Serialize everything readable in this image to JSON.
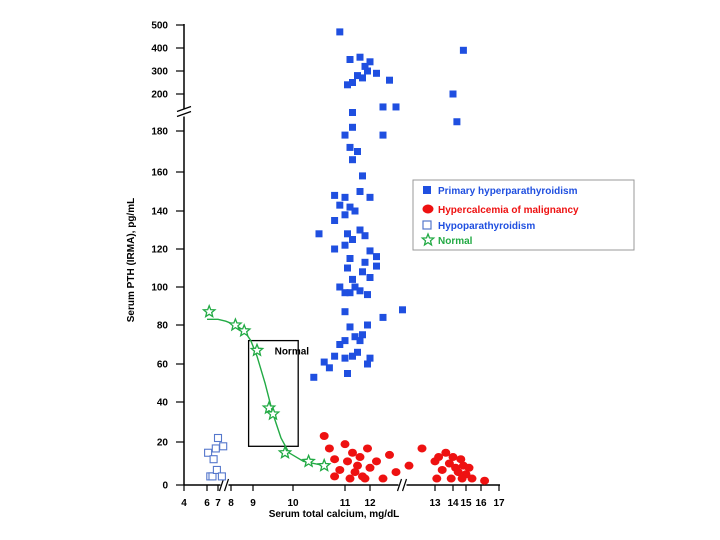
{
  "chart_data": {
    "type": "scatter",
    "title": "",
    "xlabel": "Serum total calcium, mg/dL",
    "ylabel": "Serum PTH (IRMA), pg/mL",
    "x_ticks": [
      "4",
      "6",
      "7",
      "8",
      "9",
      "10",
      "11",
      "12",
      "13",
      "14",
      "15",
      "16",
      "17"
    ],
    "x_axis_breaks": [
      "between 7 and 8",
      "between 12 and 13"
    ],
    "y_ticks": [
      "0",
      "20",
      "40",
      "60",
      "80",
      "100",
      "120",
      "140",
      "160",
      "180",
      "200",
      "300",
      "400",
      "500"
    ],
    "y_axis_break": "between 180 and 200",
    "legend_position": "right",
    "grid": false,
    "annotation": {
      "text": "Normal",
      "box_x": [
        8.8,
        10.1
      ],
      "box_y": [
        18,
        72
      ]
    },
    "series": [
      {
        "name": "Primary hyperparathyroidism",
        "marker": "filled-square",
        "color": "#1f4fe0",
        "points": [
          [
            10.4,
            53
          ],
          [
            10.7,
            58
          ],
          [
            10.6,
            61
          ],
          [
            10.8,
            64
          ],
          [
            10.9,
            70
          ],
          [
            11.0,
            72
          ],
          [
            11.1,
            55
          ],
          [
            11.0,
            63
          ],
          [
            11.3,
            64
          ],
          [
            11.5,
            66
          ],
          [
            11.9,
            60
          ],
          [
            12.0,
            63
          ],
          [
            11.7,
            75
          ],
          [
            11.4,
            74
          ],
          [
            11.2,
            79
          ],
          [
            11.6,
            72
          ],
          [
            12.2,
            84
          ],
          [
            12.5,
            88
          ],
          [
            11.9,
            80
          ],
          [
            11.0,
            87
          ],
          [
            10.9,
            100
          ],
          [
            11.0,
            97
          ],
          [
            11.2,
            97
          ],
          [
            11.4,
            100
          ],
          [
            11.6,
            98
          ],
          [
            11.9,
            96
          ],
          [
            12.0,
            105
          ],
          [
            11.7,
            108
          ],
          [
            11.8,
            113
          ],
          [
            12.1,
            111
          ],
          [
            11.3,
            104
          ],
          [
            11.1,
            110
          ],
          [
            11.2,
            115
          ],
          [
            10.8,
            120
          ],
          [
            11.0,
            122
          ],
          [
            11.3,
            125
          ],
          [
            10.5,
            128
          ],
          [
            10.8,
            135
          ],
          [
            11.0,
            138
          ],
          [
            11.1,
            128
          ],
          [
            11.2,
            142
          ],
          [
            11.4,
            140
          ],
          [
            11.6,
            130
          ],
          [
            11.8,
            127
          ],
          [
            12.0,
            119
          ],
          [
            12.1,
            116
          ],
          [
            10.9,
            143
          ],
          [
            10.8,
            148
          ],
          [
            11.0,
            147
          ],
          [
            11.7,
            158
          ],
          [
            12.0,
            147
          ],
          [
            11.3,
            166
          ],
          [
            11.5,
            170
          ],
          [
            11.2,
            172
          ],
          [
            11.0,
            178
          ],
          [
            11.3,
            182
          ],
          [
            12.2,
            178
          ],
          [
            11.6,
            150
          ],
          [
            11.3,
            190
          ],
          [
            12.2,
            193
          ],
          [
            12.4,
            193
          ],
          [
            11.1,
            240
          ],
          [
            11.3,
            250
          ],
          [
            11.5,
            280
          ],
          [
            11.7,
            270
          ],
          [
            11.9,
            300
          ],
          [
            12.1,
            290
          ],
          [
            12.3,
            260
          ],
          [
            11.6,
            360
          ],
          [
            11.2,
            350
          ],
          [
            11.8,
            320
          ],
          [
            12.0,
            340
          ],
          [
            10.9,
            470
          ],
          [
            14.0,
            200
          ],
          [
            14.3,
            185
          ],
          [
            14.8,
            390
          ]
        ]
      },
      {
        "name": "Hypercalcemia of malignancy",
        "marker": "filled-circle",
        "color": "#ee1111",
        "points": [
          [
            10.6,
            23
          ],
          [
            10.7,
            17
          ],
          [
            10.8,
            12
          ],
          [
            10.9,
            7
          ],
          [
            11.0,
            19
          ],
          [
            11.1,
            11
          ],
          [
            11.3,
            15
          ],
          [
            11.4,
            6
          ],
          [
            11.5,
            9
          ],
          [
            11.6,
            13
          ],
          [
            11.7,
            4
          ],
          [
            11.9,
            17
          ],
          [
            12.0,
            8
          ],
          [
            12.1,
            11
          ],
          [
            12.3,
            14
          ],
          [
            12.4,
            6
          ],
          [
            12.6,
            9
          ],
          [
            12.8,
            17
          ],
          [
            13.0,
            11
          ],
          [
            13.2,
            13
          ],
          [
            13.4,
            7
          ],
          [
            13.6,
            15
          ],
          [
            13.8,
            10
          ],
          [
            14.0,
            13
          ],
          [
            14.2,
            8
          ],
          [
            14.4,
            6
          ],
          [
            14.6,
            12
          ],
          [
            14.8,
            9
          ],
          [
            15.0,
            5
          ],
          [
            15.2,
            8
          ],
          [
            15.4,
            3
          ],
          [
            10.8,
            4
          ],
          [
            11.2,
            3
          ],
          [
            11.8,
            3
          ],
          [
            12.2,
            3
          ],
          [
            13.1,
            3
          ],
          [
            13.9,
            3
          ],
          [
            14.7,
            3
          ],
          [
            16.2,
            2
          ]
        ]
      },
      {
        "name": "Hypoparathyroidism",
        "marker": "open-square",
        "color": "#5577cc",
        "points": [
          [
            6.1,
            15
          ],
          [
            6.3,
            4
          ],
          [
            6.5,
            4
          ],
          [
            6.6,
            12
          ],
          [
            6.8,
            17
          ],
          [
            7.0,
            22
          ],
          [
            6.9,
            7
          ],
          [
            7.4,
            18
          ],
          [
            7.3,
            4
          ]
        ]
      },
      {
        "name": "Normal",
        "marker": "open-star",
        "color": "#22aa44",
        "points": [
          [
            6.2,
            87
          ],
          [
            8.2,
            80
          ],
          [
            8.6,
            77
          ],
          [
            9.1,
            67
          ],
          [
            9.4,
            37
          ],
          [
            9.5,
            34
          ],
          [
            9.8,
            15
          ],
          [
            10.3,
            11
          ],
          [
            10.6,
            9
          ]
        ]
      }
    ],
    "normal_curve": [
      [
        6.0,
        83
      ],
      [
        7.0,
        83
      ],
      [
        7.6,
        82
      ],
      [
        8.2,
        80
      ],
      [
        8.6,
        77
      ],
      [
        8.9,
        72
      ],
      [
        9.1,
        64
      ],
      [
        9.3,
        50
      ],
      [
        9.5,
        34
      ],
      [
        9.7,
        22
      ],
      [
        9.9,
        15
      ],
      [
        10.2,
        11
      ],
      [
        10.6,
        9
      ]
    ]
  }
}
